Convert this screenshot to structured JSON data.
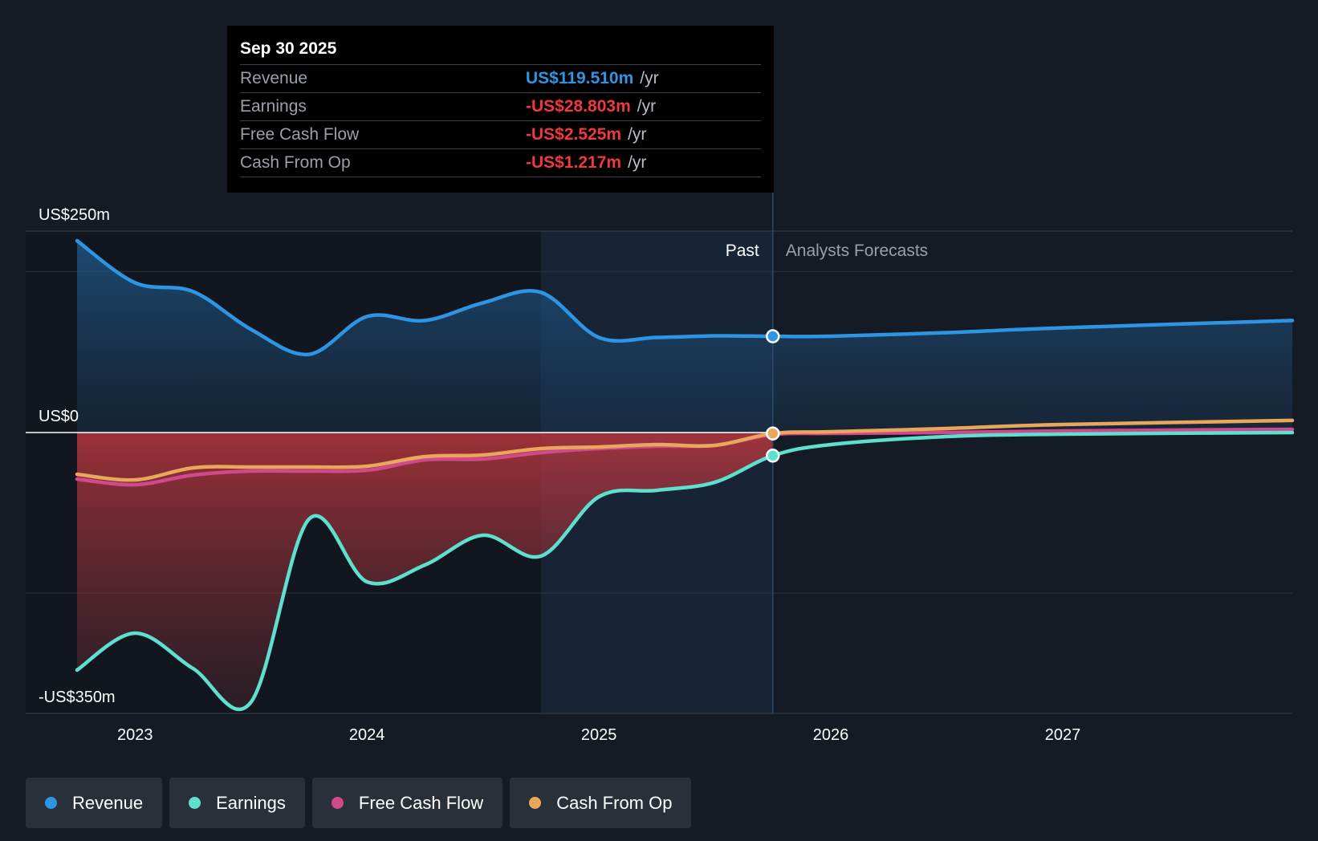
{
  "tooltip": {
    "date": "Sep 30 2025",
    "rows": [
      {
        "label": "Revenue",
        "value": "US$119.510m",
        "unit": "/yr",
        "color": "#2d95e3"
      },
      {
        "label": "Earnings",
        "value": "-US$28.803m",
        "unit": "/yr",
        "color": "#f0393f"
      },
      {
        "label": "Free Cash Flow",
        "value": "-US$2.525m",
        "unit": "/yr",
        "color": "#f0393f"
      },
      {
        "label": "Cash From Op",
        "value": "-US$1.217m",
        "unit": "/yr",
        "color": "#f0393f"
      }
    ]
  },
  "legend": [
    {
      "label": "Revenue",
      "color": "#2d95e3"
    },
    {
      "label": "Earnings",
      "color": "#5fe0cf"
    },
    {
      "label": "Free Cash Flow",
      "color": "#cf4a8c"
    },
    {
      "label": "Cash From Op",
      "color": "#e8a75a"
    }
  ],
  "chart_data": {
    "type": "line",
    "title": "",
    "xlabel": "",
    "ylabel": "",
    "y_axis_labels": [
      {
        "value": 250,
        "label": "US$250m"
      },
      {
        "value": 0,
        "label": "US$0"
      },
      {
        "value": -350,
        "label": "-US$350m"
      }
    ],
    "ylim": [
      -350,
      250
    ],
    "xlim": [
      2022.75,
      2027.99
    ],
    "x_ticks": [
      {
        "value": 2023.0,
        "label": "2023"
      },
      {
        "value": 2024.0,
        "label": "2024"
      },
      {
        "value": 2025.0,
        "label": "2025"
      },
      {
        "value": 2026.0,
        "label": "2026"
      },
      {
        "value": 2027.0,
        "label": "2027"
      }
    ],
    "gridlines": [
      200,
      -200
    ],
    "past_label": "Past",
    "forecast_label": "Analysts Forecasts",
    "past_end": 2025.75,
    "highlight_start": 2024.75,
    "series": [
      {
        "name": "Revenue",
        "color": "#2d95e3",
        "x": [
          2022.75,
          2023.0,
          2023.25,
          2023.5,
          2023.75,
          2024.0,
          2024.25,
          2024.5,
          2024.75,
          2025.0,
          2025.25,
          2025.5,
          2025.75,
          2026.0,
          2026.5,
          2027.0,
          2027.99
        ],
        "values": [
          238,
          186,
          175,
          128,
          97,
          144,
          139,
          161,
          174,
          118,
          118,
          120,
          119.5,
          119.5,
          124,
          130,
          139
        ]
      },
      {
        "name": "Earnings",
        "color": "#5fe0cf",
        "x": [
          2022.75,
          2023.0,
          2023.25,
          2023.5,
          2023.75,
          2024.0,
          2024.25,
          2024.5,
          2024.75,
          2025.0,
          2025.25,
          2025.5,
          2025.75,
          2026.0,
          2026.5,
          2027.0,
          2027.99
        ],
        "values": [
          -296,
          -250,
          -294,
          -336,
          -108,
          -186,
          -165,
          -128,
          -154,
          -80,
          -72,
          -62,
          -28.8,
          -15,
          -5,
          -2,
          0
        ]
      },
      {
        "name": "Free Cash Flow",
        "color": "#cf4a8c",
        "x": [
          2022.75,
          2023.0,
          2023.25,
          2023.5,
          2023.75,
          2024.0,
          2024.25,
          2024.5,
          2024.75,
          2025.0,
          2025.25,
          2025.5,
          2025.75,
          2026.0,
          2026.5,
          2027.0,
          2027.99
        ],
        "values": [
          -58,
          -65,
          -53,
          -48,
          -48,
          -47,
          -34,
          -33,
          -25,
          -20,
          -17,
          -16,
          -2.5,
          -1,
          0,
          2,
          4
        ]
      },
      {
        "name": "Cash From Op",
        "color": "#e8a75a",
        "x": [
          2022.75,
          2023.0,
          2023.25,
          2023.5,
          2023.75,
          2024.0,
          2024.25,
          2024.5,
          2024.75,
          2025.0,
          2025.25,
          2025.5,
          2025.75,
          2026.0,
          2026.5,
          2027.0,
          2027.99
        ],
        "values": [
          -52,
          -59,
          -44,
          -43,
          -43,
          -42,
          -30,
          -28,
          -20,
          -18,
          -15,
          -16,
          -1.2,
          1,
          5,
          10,
          15
        ]
      }
    ]
  }
}
